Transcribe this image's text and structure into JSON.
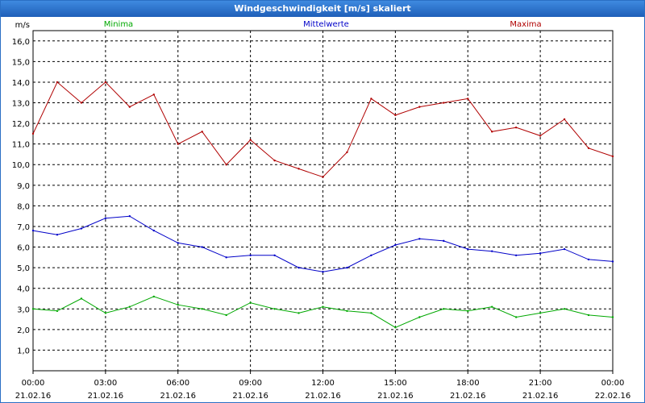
{
  "window": {
    "title": "Windgeschwindigkeit [m/s] skaliert"
  },
  "chart_data": {
    "type": "line",
    "title": "Windgeschwindigkeit [m/s] skaliert",
    "ylabel": "m/s",
    "xlabel": "",
    "ylim": [
      0,
      16.5
    ],
    "xlim_hours": [
      0,
      24
    ],
    "y_ticks": [
      "1,0",
      "2,0",
      "3,0",
      "4,0",
      "5,0",
      "6,0",
      "7,0",
      "8,0",
      "9,0",
      "10,0",
      "11,0",
      "12,0",
      "13,0",
      "14,0",
      "15,0",
      "16,0"
    ],
    "x_ticks": [
      {
        "time": "00:00",
        "date": "21.02.16"
      },
      {
        "time": "03:00",
        "date": "21.02.16"
      },
      {
        "time": "06:00",
        "date": "21.02.16"
      },
      {
        "time": "09:00",
        "date": "21.02.16"
      },
      {
        "time": "12:00",
        "date": "21.02.16"
      },
      {
        "time": "15:00",
        "date": "21.02.16"
      },
      {
        "time": "18:00",
        "date": "21.02.16"
      },
      {
        "time": "21:00",
        "date": "21.02.16"
      },
      {
        "time": "00:00",
        "date": "22.02.16"
      }
    ],
    "grid": true,
    "series": [
      {
        "name": "Minima",
        "color": "#00a800",
        "legend_position": "left",
        "x": [
          0,
          1,
          2,
          3,
          4,
          5,
          6,
          7,
          8,
          9,
          10,
          11,
          12,
          13,
          14,
          15,
          16,
          17,
          18,
          19,
          20,
          21,
          22,
          23,
          24
        ],
        "values": [
          3.0,
          2.9,
          3.5,
          2.8,
          3.1,
          3.6,
          3.2,
          3.0,
          2.7,
          3.3,
          3.0,
          2.8,
          3.1,
          2.9,
          2.8,
          2.1,
          2.6,
          3.0,
          2.9,
          3.1,
          2.6,
          2.8,
          3.0,
          2.7,
          2.6
        ]
      },
      {
        "name": "Mittelwerte",
        "color": "#0000c8",
        "legend_position": "center",
        "x": [
          0,
          1,
          2,
          3,
          4,
          5,
          6,
          7,
          8,
          9,
          10,
          11,
          12,
          13,
          14,
          15,
          16,
          17,
          18,
          19,
          20,
          21,
          22,
          23,
          24
        ],
        "values": [
          6.8,
          6.6,
          6.9,
          7.4,
          7.5,
          6.8,
          6.2,
          6.0,
          5.5,
          5.6,
          5.6,
          5.0,
          4.8,
          5.0,
          5.6,
          6.1,
          6.4,
          6.3,
          5.9,
          5.8,
          5.6,
          5.7,
          5.9,
          5.4,
          5.3
        ]
      },
      {
        "name": "Maxima",
        "color": "#b00000",
        "legend_position": "right",
        "x": [
          0,
          1,
          2,
          3,
          4,
          5,
          6,
          7,
          8,
          9,
          10,
          11,
          12,
          13,
          14,
          15,
          16,
          17,
          18,
          19,
          20,
          21,
          22,
          23,
          24
        ],
        "values": [
          11.5,
          14.0,
          13.0,
          14.0,
          12.8,
          13.4,
          11.0,
          11.6,
          10.0,
          11.2,
          10.2,
          9.8,
          9.4,
          10.6,
          13.2,
          12.4,
          12.8,
          13.0,
          13.2,
          11.6,
          11.8,
          11.4,
          12.2,
          10.8,
          10.4
        ]
      }
    ]
  }
}
